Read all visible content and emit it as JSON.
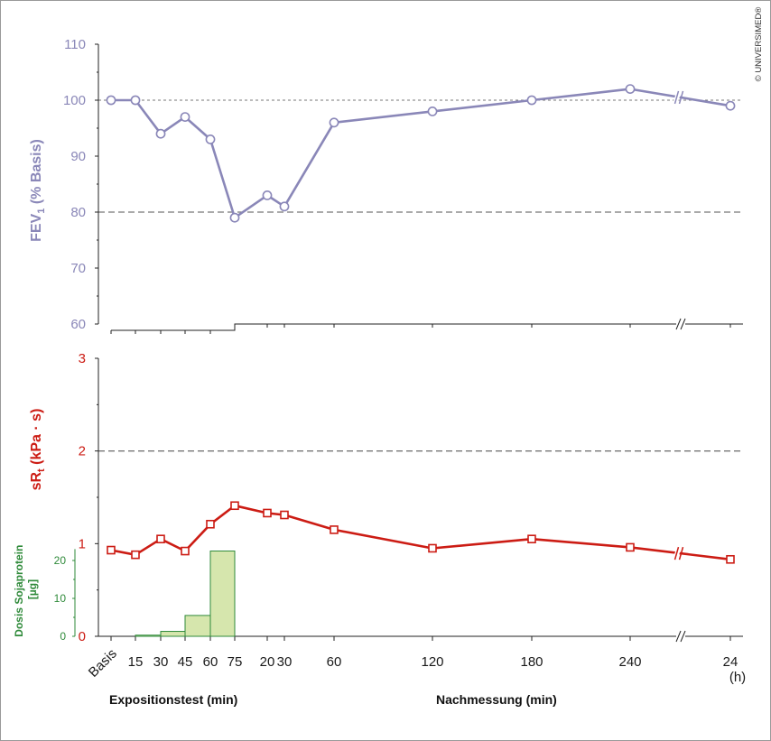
{
  "copyright": "© UNIVERSIMED®",
  "colors": {
    "fev": "#8a87b8",
    "srt": "#cc1c14",
    "dose": "#2f8a3a",
    "dose_fill": "#d6e6ad",
    "reference": "#777777"
  },
  "chart_data": [
    {
      "type": "line",
      "panel": "top",
      "ylabel_main": "FEV",
      "ylabel_sub": "1",
      "ylabel_rest": " (% Basis)",
      "ylim": [
        60,
        110
      ],
      "yticks": [
        "60",
        "70",
        "80",
        "90",
        "100",
        "110"
      ],
      "reference_lines": [
        100,
        80
      ],
      "grid": false,
      "series": [
        {
          "marker": "circle",
          "x": [
            "Basis",
            "15",
            "30",
            "45",
            "60",
            "75",
            "20",
            "30",
            "60",
            "120",
            "180",
            "240",
            "24"
          ],
          "values": [
            100,
            100,
            94,
            97,
            93,
            79,
            83,
            81,
            96,
            98,
            100,
            102,
            99
          ]
        }
      ]
    },
    {
      "type": "line",
      "panel": "bottom",
      "ylabel_main": "sR",
      "ylabel_sub": "t",
      "ylabel_rest": " (kPa · s)",
      "ylim": [
        0,
        3
      ],
      "yticks": [
        "0",
        "1",
        "2",
        "3"
      ],
      "reference_lines": [
        2
      ],
      "grid": false,
      "series": [
        {
          "marker": "square",
          "x": [
            "Basis",
            "15",
            "30",
            "45",
            "60",
            "75",
            "20",
            "30",
            "60",
            "120",
            "180",
            "240",
            "24"
          ],
          "values": [
            0.93,
            0.88,
            1.05,
            0.92,
            1.21,
            1.41,
            1.33,
            1.31,
            1.15,
            0.95,
            1.05,
            0.96,
            0.83
          ]
        }
      ]
    },
    {
      "type": "bar",
      "panel": "bottom-inset",
      "ylabel_line1": "Dosis Sojaprotein",
      "ylabel_line2": "[µg]",
      "ylim": [
        0,
        20
      ],
      "yticks": [
        "0",
        "10",
        "20"
      ],
      "categories": [
        "15",
        "30",
        "45",
        "60",
        "75"
      ],
      "values": [
        0.3,
        1.3,
        5.5,
        22.5,
        0
      ]
    }
  ],
  "x_axis": {
    "tick_labels": [
      "Basis",
      "15",
      "30",
      "45",
      "60",
      "75",
      "20",
      "30",
      "60",
      "120",
      "180",
      "240",
      "24"
    ],
    "unit_label": "(h)",
    "section_labels": [
      "Expositionstest (min)",
      "Nachmessung (min)"
    ]
  }
}
